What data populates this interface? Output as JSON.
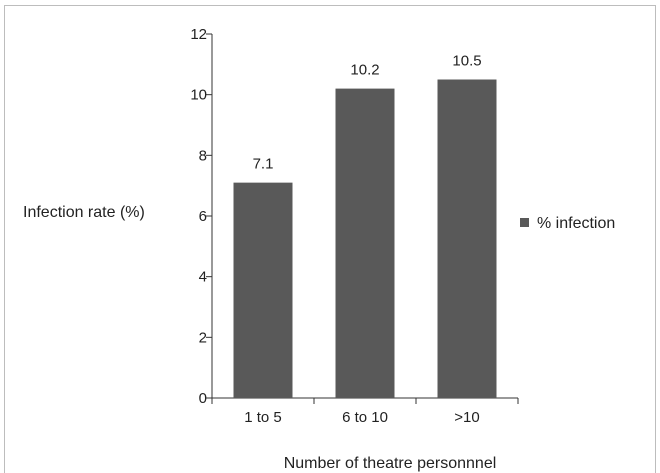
{
  "chart_data": {
    "type": "bar",
    "categories": [
      "1 to 5",
      "6 to 10",
      ">10"
    ],
    "series": [
      {
        "name": "% infection",
        "values": [
          7.1,
          10.2,
          10.5
        ],
        "color": "#595959"
      }
    ],
    "data_labels": [
      "7.1",
      "10.2",
      "10.5"
    ],
    "xlabel": "Number of theatre personnnel",
    "ylabel": "Infection rate (%)",
    "ylim": [
      0,
      12
    ],
    "yticks": [
      0,
      2,
      4,
      6,
      8,
      10,
      12
    ],
    "grid": false,
    "legend_position": "right",
    "bar_color": "#595959",
    "axis_color": "#333333"
  }
}
